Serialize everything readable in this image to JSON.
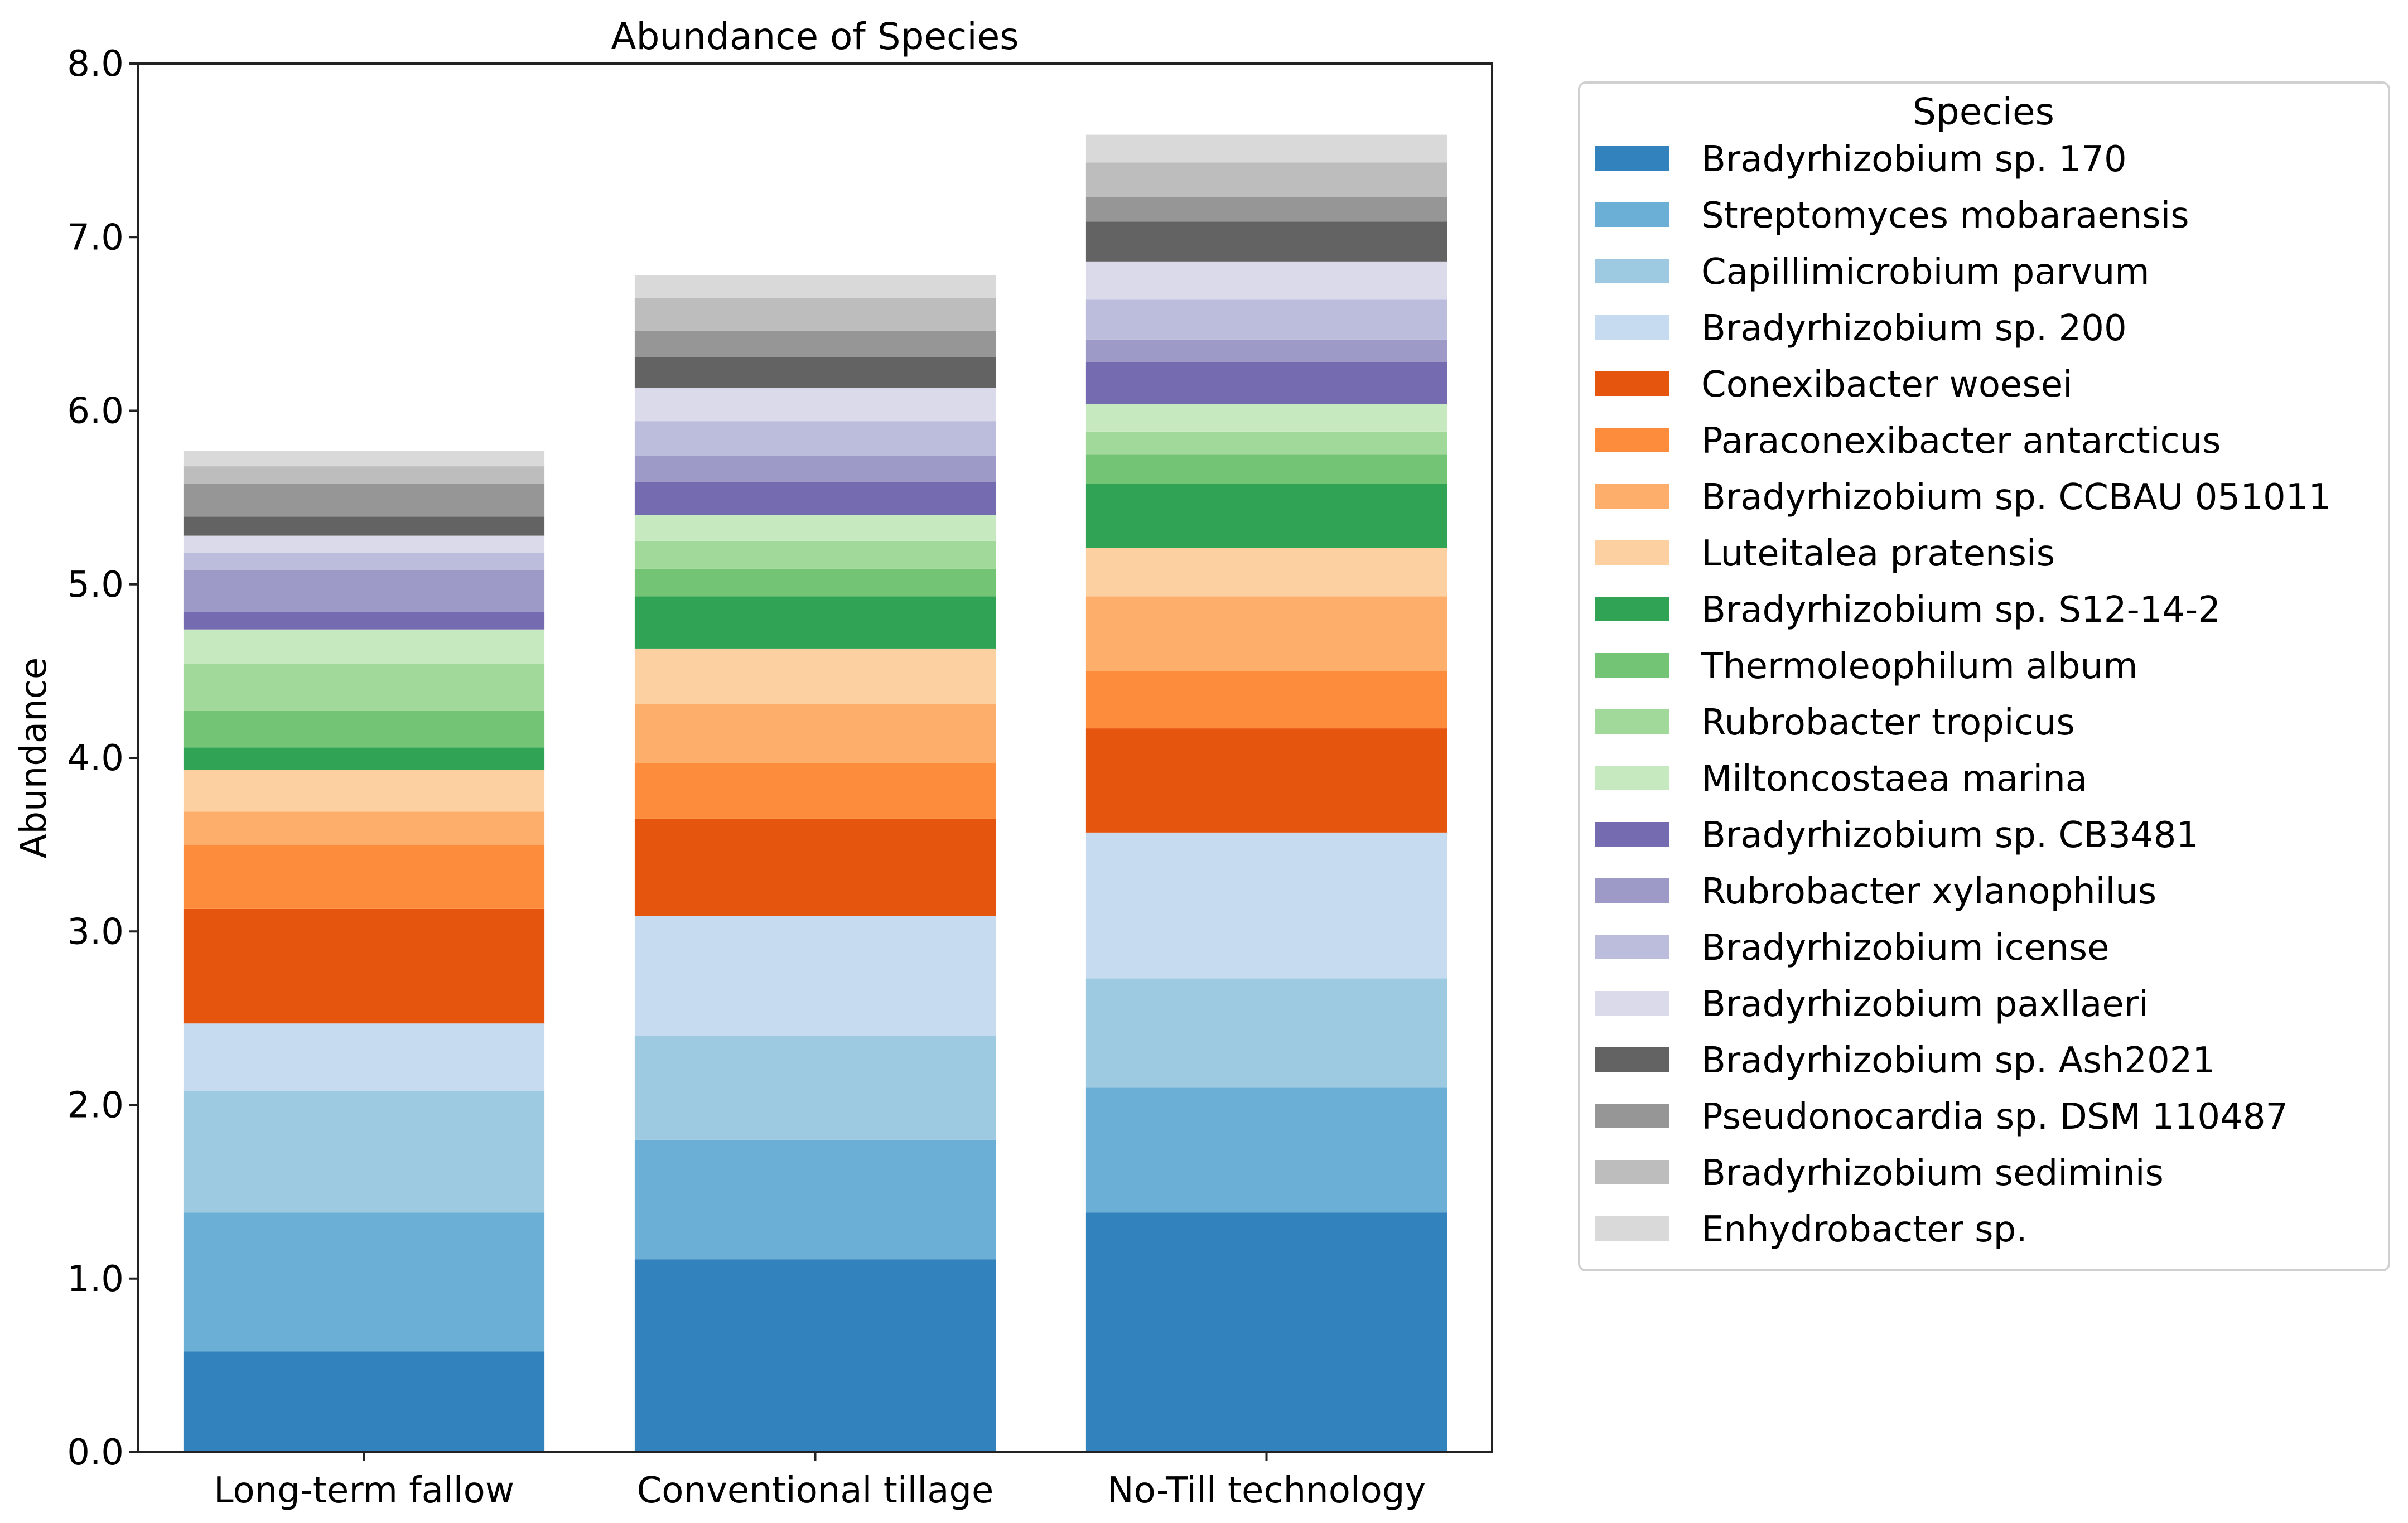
{
  "chart_data": {
    "type": "bar",
    "stacked": true,
    "title": "Abundance of Species",
    "xlabel": "",
    "ylabel": "Abundance",
    "ylim": [
      0,
      8
    ],
    "yticks": [
      "0.0",
      "1.0",
      "2.0",
      "3.0",
      "4.0",
      "5.0",
      "6.0",
      "7.0",
      "8.0"
    ],
    "categories": [
      "Long-term fallow",
      "Conventional tillage",
      "No-Till technology"
    ],
    "legend": {
      "title": "Species",
      "placement": "right"
    },
    "series": [
      {
        "name": "Bradyrhizobium sp. 170",
        "color": "#3182bd",
        "values": [
          0.58,
          1.11,
          1.38
        ]
      },
      {
        "name": "Streptomyces mobaraensis",
        "color": "#6baed6",
        "values": [
          0.8,
          0.69,
          0.72
        ]
      },
      {
        "name": "Capillimicrobium parvum",
        "color": "#9ecae1",
        "values": [
          0.7,
          0.6,
          0.63
        ]
      },
      {
        "name": "Bradyrhizobium sp. 200",
        "color": "#c6dbef",
        "values": [
          0.39,
          0.69,
          0.84
        ]
      },
      {
        "name": "Conexibacter woesei",
        "color": "#e6550d",
        "values": [
          0.66,
          0.56,
          0.6
        ]
      },
      {
        "name": "Paraconexibacter antarcticus",
        "color": "#fd8d3c",
        "values": [
          0.37,
          0.32,
          0.33
        ]
      },
      {
        "name": "Bradyrhizobium sp. CCBAU 051011",
        "color": "#fdae6b",
        "values": [
          0.19,
          0.34,
          0.43
        ]
      },
      {
        "name": "Luteitalea pratensis",
        "color": "#fdd0a2",
        "values": [
          0.24,
          0.32,
          0.28
        ]
      },
      {
        "name": "Bradyrhizobium sp. S12-14-2",
        "color": "#31a354",
        "values": [
          0.13,
          0.3,
          0.37
        ]
      },
      {
        "name": "Thermoleophilum album",
        "color": "#74c476",
        "values": [
          0.21,
          0.16,
          0.17
        ]
      },
      {
        "name": "Rubrobacter tropicus",
        "color": "#a1d99b",
        "values": [
          0.27,
          0.16,
          0.13
        ]
      },
      {
        "name": "Miltoncostaea marina",
        "color": "#c7e9c0",
        "values": [
          0.2,
          0.15,
          0.16
        ]
      },
      {
        "name": "Bradyrhizobium sp. CB3481",
        "color": "#756bb1",
        "values": [
          0.1,
          0.19,
          0.24
        ]
      },
      {
        "name": "Rubrobacter xylanophilus",
        "color": "#9e9ac8",
        "values": [
          0.24,
          0.15,
          0.13
        ]
      },
      {
        "name": "Bradyrhizobium icense",
        "color": "#bcbddc",
        "values": [
          0.1,
          0.2,
          0.23
        ]
      },
      {
        "name": "Bradyrhizobium paxllaeri",
        "color": "#dadaeb",
        "values": [
          0.1,
          0.19,
          0.22
        ]
      },
      {
        "name": "Bradyrhizobium sp. Ash2021",
        "color": "#636363",
        "values": [
          0.11,
          0.18,
          0.23
        ]
      },
      {
        "name": "Pseudonocardia sp. DSM 110487",
        "color": "#969696",
        "values": [
          0.19,
          0.15,
          0.14
        ]
      },
      {
        "name": "Bradyrhizobium sediminis",
        "color": "#bdbdbd",
        "values": [
          0.1,
          0.19,
          0.2
        ]
      },
      {
        "name": "Enhydrobacter sp.",
        "color": "#d9d9d9",
        "values": [
          0.09,
          0.13,
          0.16
        ]
      }
    ]
  }
}
